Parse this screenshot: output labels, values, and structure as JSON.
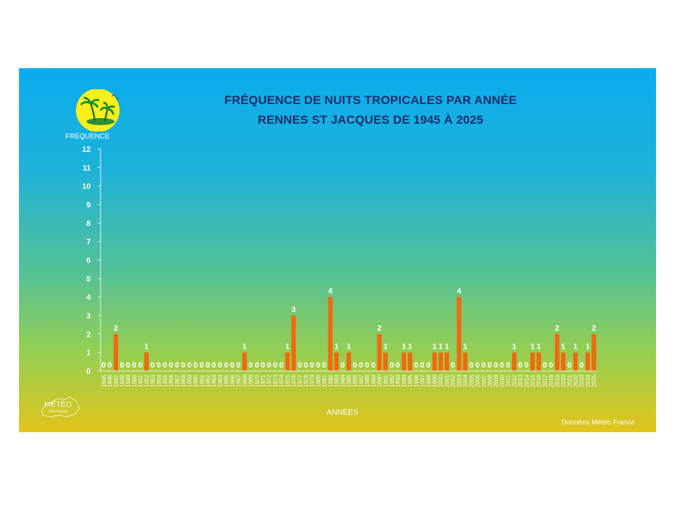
{
  "chart_data": {
    "type": "bar",
    "title": "FRÉQUENCE DE NUITS TROPICALES PAR ANNÉE",
    "subtitle": "RENNES ST JACQUES DE 1945 À 2025",
    "ylabel": "FRÉQUENCE",
    "xlabel": "ANNÉES",
    "ylim": [
      0,
      12
    ],
    "yticks": [
      0,
      1,
      2,
      3,
      4,
      5,
      6,
      7,
      8,
      9,
      10,
      11,
      12
    ],
    "grid": false,
    "legend": "none",
    "data_labels": true,
    "categories": [
      "1945",
      "1946",
      "1947",
      "1948",
      "1949",
      "1950",
      "1951",
      "1952",
      "1953",
      "1954",
      "1955",
      "1956",
      "1957",
      "1958",
      "1959",
      "1960",
      "1961",
      "1962",
      "1963",
      "1964",
      "1965",
      "1966",
      "1967",
      "1968",
      "1969",
      "1970",
      "1971",
      "1972",
      "1973",
      "1974",
      "1975",
      "1976",
      "1977",
      "1978",
      "1979",
      "1980",
      "1981",
      "1982",
      "1983",
      "1984",
      "1985",
      "1986",
      "1987",
      "1988",
      "1989",
      "1990",
      "1991",
      "1992",
      "1993",
      "1994",
      "1995",
      "1996",
      "1997",
      "1998",
      "1999",
      "2000",
      "2001",
      "2002",
      "2003",
      "2004",
      "2005",
      "2006",
      "2007",
      "2008",
      "2009",
      "2010",
      "2011",
      "2012",
      "2013",
      "2014",
      "2015",
      "2016",
      "2017",
      "2018",
      "2019",
      "2020",
      "2021",
      "2022",
      "2023",
      "2024",
      "2025"
    ],
    "values": [
      0,
      0,
      2,
      0,
      0,
      0,
      0,
      1,
      0,
      0,
      0,
      0,
      0,
      0,
      0,
      0,
      0,
      0,
      0,
      0,
      0,
      0,
      0,
      1,
      0,
      0,
      0,
      0,
      0,
      0,
      1,
      3,
      0,
      0,
      0,
      0,
      0,
      4,
      1,
      0,
      1,
      0,
      0,
      0,
      0,
      2,
      1,
      0,
      0,
      1,
      1,
      0,
      0,
      0,
      1,
      1,
      1,
      0,
      4,
      1,
      0,
      0,
      0,
      0,
      0,
      0,
      0,
      1,
      0,
      0,
      1,
      1,
      0,
      0,
      2,
      1,
      0,
      1,
      0,
      1,
      2
    ],
    "colors": {
      "bar": "#f06a12",
      "text": "#ffffff",
      "title": "#1f2d6b"
    }
  },
  "footer": {
    "source": "Données Météo France"
  },
  "logos": {
    "sun_logo": "tropical-island-sun-icon",
    "meteo_logo_text": "MÉTÉO BRETAGNE"
  }
}
